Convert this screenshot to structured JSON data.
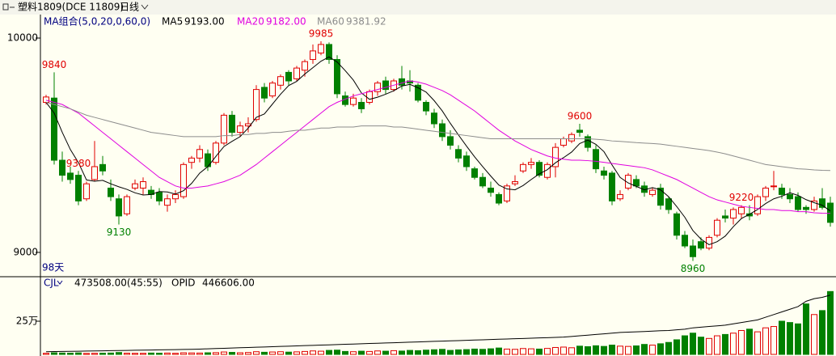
{
  "header": {
    "symbol": "塑料1809(DCE 11809)",
    "period": "日线"
  },
  "chart_data": [
    {
      "type": "candlestick",
      "ma_title": "MA组合(5,0,20,0,60,0)",
      "days_label": "98天",
      "up_color": "#e00000",
      "down_color": "#008000",
      "ylim": [
        8913,
        10102
      ],
      "yticks": [
        9000,
        10000
      ],
      "candles": [
        [
          9700,
          9735,
          9690,
          9725
        ],
        [
          9720,
          9840,
          9410,
          9430
        ],
        [
          9430,
          9470,
          9330,
          9360
        ],
        [
          9370,
          9400,
          9320,
          9340
        ],
        [
          9360,
          9380,
          9220,
          9240
        ],
        [
          9250,
          9330,
          9240,
          9320
        ],
        [
          9340,
          9520,
          9330,
          9400
        ],
        [
          9410,
          9450,
          9360,
          9380
        ],
        [
          9300,
          9340,
          9240,
          9260
        ],
        [
          9250,
          9270,
          9130,
          9170
        ],
        [
          9180,
          9270,
          9170,
          9260
        ],
        [
          9300,
          9340,
          9290,
          9320
        ],
        [
          9300,
          9350,
          9270,
          9330
        ],
        [
          9290,
          9310,
          9250,
          9270
        ],
        [
          9280,
          9300,
          9220,
          9240
        ],
        [
          9220,
          9270,
          9190,
          9250
        ],
        [
          9250,
          9290,
          9230,
          9270
        ],
        [
          9260,
          9420,
          9250,
          9410
        ],
        [
          9420,
          9450,
          9390,
          9440
        ],
        [
          9440,
          9500,
          9420,
          9480
        ],
        [
          9460,
          9480,
          9380,
          9400
        ],
        [
          9420,
          9520,
          9410,
          9510
        ],
        [
          9510,
          9650,
          9500,
          9640
        ],
        [
          9640,
          9660,
          9540,
          9560
        ],
        [
          9560,
          9610,
          9540,
          9590
        ],
        [
          9590,
          9630,
          9560,
          9600
        ],
        [
          9620,
          9780,
          9610,
          9760
        ],
        [
          9770,
          9790,
          9700,
          9720
        ],
        [
          9730,
          9800,
          9720,
          9790
        ],
        [
          9780,
          9830,
          9760,
          9820
        ],
        [
          9840,
          9850,
          9780,
          9800
        ],
        [
          9810,
          9870,
          9800,
          9860
        ],
        [
          9850,
          9900,
          9820,
          9890
        ],
        [
          9900,
          9970,
          9880,
          9940
        ],
        [
          9930,
          9985,
          9920,
          9970
        ],
        [
          9970,
          9980,
          9880,
          9900
        ],
        [
          9900,
          9920,
          9720,
          9740
        ],
        [
          9730,
          9750,
          9680,
          9690
        ],
        [
          9690,
          9740,
          9680,
          9720
        ],
        [
          9700,
          9720,
          9650,
          9670
        ],
        [
          9700,
          9760,
          9690,
          9750
        ],
        [
          9750,
          9800,
          9730,
          9790
        ],
        [
          9800,
          9820,
          9740,
          9760
        ],
        [
          9760,
          9810,
          9750,
          9800
        ],
        [
          9810,
          9870,
          9760,
          9780
        ],
        [
          9800,
          9850,
          9750,
          9790
        ],
        [
          9780,
          9790,
          9700,
          9710
        ],
        [
          9700,
          9710,
          9640,
          9660
        ],
        [
          9650,
          9670,
          9580,
          9600
        ],
        [
          9600,
          9620,
          9520,
          9540
        ],
        [
          9540,
          9570,
          9480,
          9500
        ],
        [
          9480,
          9500,
          9420,
          9440
        ],
        [
          9450,
          9470,
          9380,
          9400
        ],
        [
          9390,
          9400,
          9340,
          9350
        ],
        [
          9350,
          9370,
          9300,
          9310
        ],
        [
          9300,
          9330,
          9260,
          9280
        ],
        [
          9270,
          9280,
          9220,
          9230
        ],
        [
          9240,
          9320,
          9230,
          9310
        ],
        [
          9320,
          9360,
          9310,
          9330
        ],
        [
          9380,
          9420,
          9370,
          9410
        ],
        [
          9410,
          9440,
          9390,
          9420
        ],
        [
          9420,
          9430,
          9350,
          9360
        ],
        [
          9350,
          9420,
          9340,
          9410
        ],
        [
          9400,
          9510,
          9350,
          9490
        ],
        [
          9500,
          9540,
          9490,
          9530
        ],
        [
          9520,
          9560,
          9510,
          9550
        ],
        [
          9570,
          9600,
          9540,
          9560
        ],
        [
          9540,
          9550,
          9470,
          9490
        ],
        [
          9480,
          9500,
          9370,
          9390
        ],
        [
          9380,
          9400,
          9340,
          9360
        ],
        [
          9370,
          9380,
          9220,
          9240
        ],
        [
          9250,
          9290,
          9240,
          9270
        ],
        [
          9300,
          9370,
          9290,
          9360
        ],
        [
          9340,
          9360,
          9300,
          9310
        ],
        [
          9310,
          9330,
          9260,
          9280
        ],
        [
          9270,
          9300,
          9260,
          9290
        ],
        [
          9300,
          9320,
          9200,
          9220
        ],
        [
          9250,
          9260,
          9180,
          9200
        ],
        [
          9180,
          9190,
          9060,
          9080
        ],
        [
          9080,
          9100,
          9020,
          9030
        ],
        [
          9030,
          9060,
          8960,
          8980
        ],
        [
          9050,
          9070,
          9010,
          9020
        ],
        [
          9020,
          9080,
          9010,
          9070
        ],
        [
          9080,
          9160,
          9070,
          9150
        ],
        [
          9170,
          9200,
          9140,
          9160
        ],
        [
          9160,
          9210,
          9130,
          9200
        ],
        [
          9180,
          9220,
          9160,
          9210
        ],
        [
          9180,
          9220,
          9150,
          9170
        ],
        [
          9180,
          9270,
          9170,
          9260
        ],
        [
          9260,
          9310,
          9240,
          9300
        ],
        [
          9310,
          9380,
          9290,
          9310
        ],
        [
          9300,
          9320,
          9250,
          9270
        ],
        [
          9270,
          9300,
          9230,
          9250
        ],
        [
          9260,
          9280,
          9190,
          9200
        ],
        [
          9210,
          9220,
          9180,
          9200
        ],
        [
          9200,
          9260,
          9190,
          9240
        ],
        [
          9250,
          9300,
          9200,
          9210
        ],
        [
          9230,
          9260,
          9120,
          9140
        ]
      ],
      "extreme_labels": [
        9840,
        9130,
        9985,
        9220,
        9600,
        8960,
        9380
      ],
      "series": [
        {
          "name": "MA5",
          "color": "#000000",
          "value_label": "9193.00",
          "values": [
            9700,
            9650,
            9560,
            9480,
            9419,
            9338,
            9332,
            9336,
            9320,
            9306,
            9294,
            9278,
            9268,
            9270,
            9284,
            9282,
            9272,
            9288,
            9322,
            9370,
            9400,
            9448,
            9494,
            9518,
            9540,
            9580,
            9630,
            9646,
            9692,
            9738,
            9778,
            9798,
            9832,
            9862,
            9892,
            9912,
            9888,
            9848,
            9804,
            9744,
            9714,
            9724,
            9738,
            9754,
            9776,
            9784,
            9768,
            9748,
            9708,
            9660,
            9602,
            9548,
            9496,
            9446,
            9400,
            9356,
            9314,
            9296,
            9292,
            9312,
            9340,
            9366,
            9386,
            9418,
            9442,
            9468,
            9508,
            9524,
            9504,
            9470,
            9408,
            9350,
            9324,
            9308,
            9292,
            9302,
            9292,
            9260,
            9214,
            9164,
            9102,
            9062,
            9036,
            9050,
            9076,
            9120,
            9158,
            9178,
            9200,
            9228,
            9250,
            9262,
            9278,
            9266,
            9246,
            9232,
            9220,
            9193
          ]
        },
        {
          "name": "MA20",
          "color": "#e000e0",
          "value_label": "9182.00",
          "values": [
            9710,
            9700,
            9690,
            9670,
            9650,
            9620,
            9590,
            9560,
            9530,
            9500,
            9470,
            9440,
            9410,
            9380,
            9350,
            9330,
            9310,
            9300,
            9300,
            9305,
            9310,
            9320,
            9330,
            9345,
            9360,
            9385,
            9410,
            9440,
            9470,
            9500,
            9530,
            9560,
            9590,
            9620,
            9650,
            9680,
            9700,
            9715,
            9730,
            9740,
            9750,
            9760,
            9770,
            9780,
            9790,
            9800,
            9795,
            9785,
            9770,
            9755,
            9735,
            9710,
            9685,
            9660,
            9630,
            9600,
            9570,
            9545,
            9520,
            9500,
            9480,
            9465,
            9450,
            9440,
            9435,
            9430,
            9430,
            9428,
            9425,
            9420,
            9415,
            9410,
            9405,
            9400,
            9395,
            9385,
            9370,
            9355,
            9340,
            9320,
            9300,
            9280,
            9260,
            9245,
            9235,
            9225,
            9215,
            9210,
            9205,
            9200,
            9200,
            9195,
            9195,
            9190,
            9190,
            9185,
            9183,
            9182
          ]
        },
        {
          "name": "MA60",
          "color": "#8c8c8c",
          "value_label": "9381.92",
          "values": [
            9700,
            9690,
            9680,
            9670,
            9655,
            9640,
            9630,
            9620,
            9610,
            9600,
            9590,
            9580,
            9570,
            9560,
            9555,
            9550,
            9545,
            9540,
            9540,
            9540,
            9540,
            9540,
            9545,
            9545,
            9550,
            9550,
            9555,
            9555,
            9560,
            9560,
            9565,
            9570,
            9570,
            9575,
            9580,
            9580,
            9585,
            9585,
            9585,
            9590,
            9590,
            9590,
            9590,
            9585,
            9585,
            9580,
            9575,
            9570,
            9565,
            9560,
            9555,
            9550,
            9545,
            9540,
            9535,
            9530,
            9530,
            9530,
            9530,
            9530,
            9530,
            9530,
            9530,
            9530,
            9530,
            9530,
            9530,
            9530,
            9528,
            9525,
            9520,
            9518,
            9515,
            9512,
            9510,
            9508,
            9505,
            9500,
            9495,
            9490,
            9485,
            9480,
            9475,
            9468,
            9460,
            9450,
            9440,
            9430,
            9420,
            9410,
            9405,
            9400,
            9395,
            9390,
            9388,
            9385,
            9383,
            9381.92
          ]
        }
      ]
    },
    {
      "type": "volume",
      "ylim": [
        0,
        506000
      ],
      "yticks": [
        {
          "value": 250000,
          "label": "25万"
        }
      ],
      "series": [
        {
          "name": "CJL",
          "value_label": "473508.00(45:55)",
          "values": [
            8000,
            12000,
            10000,
            9000,
            11000,
            7000,
            8000,
            9000,
            10000,
            14000,
            9000,
            8000,
            8000,
            10000,
            9000,
            10000,
            8000,
            12000,
            11000,
            10000,
            12000,
            13000,
            18000,
            15000,
            12000,
            14000,
            20000,
            16000,
            18000,
            20000,
            17000,
            19000,
            22000,
            26000,
            24000,
            30000,
            32000,
            22000,
            20000,
            24000,
            22000,
            26000,
            24000,
            28000,
            25000,
            30000,
            28000,
            32000,
            35000,
            38000,
            30000,
            34000,
            36000,
            40000,
            38000,
            42000,
            48000,
            40000,
            38000,
            44000,
            42000,
            40000,
            45000,
            52000,
            55000,
            50000,
            62000,
            58000,
            65000,
            60000,
            70000,
            62000,
            60000,
            64000,
            75000,
            70000,
            80000,
            90000,
            110000,
            140000,
            160000,
            130000,
            120000,
            140000,
            150000,
            160000,
            180000,
            190000,
            170000,
            200000,
            210000,
            250000,
            240000,
            230000,
            380000,
            300000,
            330000,
            473508
          ]
        },
        {
          "name": "OPID",
          "color": "#000000",
          "value_label": "446606.00",
          "values": [
            20000,
            21000,
            22000,
            23000,
            24000,
            25000,
            26000,
            27000,
            28000,
            29000,
            30000,
            31000,
            32000,
            33000,
            34000,
            35000,
            36000,
            37000,
            38000,
            40000,
            42000,
            44000,
            46000,
            48000,
            50000,
            52000,
            54000,
            56000,
            58000,
            60000,
            62000,
            64000,
            66000,
            68000,
            70000,
            72000,
            74000,
            76000,
            78000,
            80000,
            82000,
            84000,
            86000,
            88000,
            90000,
            92000,
            94000,
            96000,
            98000,
            100000,
            102000,
            104000,
            106000,
            108000,
            110000,
            112000,
            114000,
            116000,
            118000,
            120000,
            122000,
            124000,
            126000,
            128000,
            130000,
            135000,
            140000,
            145000,
            150000,
            155000,
            160000,
            165000,
            168000,
            170000,
            172000,
            175000,
            178000,
            180000,
            185000,
            190000,
            200000,
            205000,
            210000,
            215000,
            220000,
            230000,
            240000,
            250000,
            260000,
            280000,
            300000,
            320000,
            340000,
            360000,
            400000,
            420000,
            430000,
            446606
          ]
        }
      ]
    }
  ]
}
